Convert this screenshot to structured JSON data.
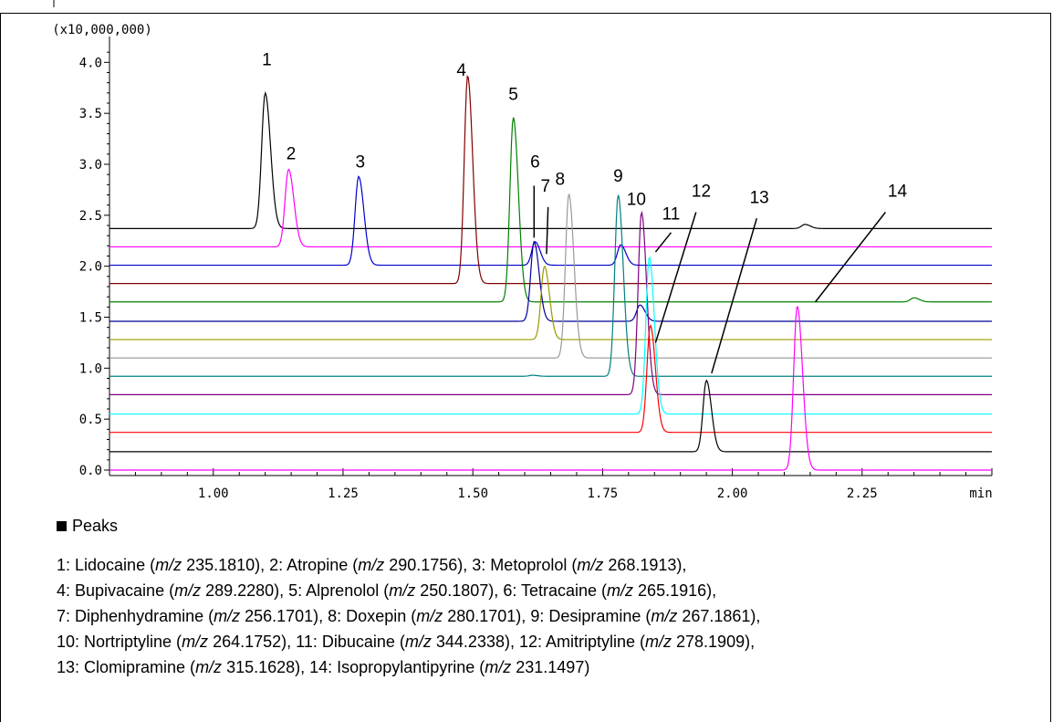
{
  "chart_data": {
    "type": "line",
    "title": "",
    "xlabel": "min",
    "ylabel": "",
    "y_multiplier_label": "(x10,000,000)",
    "xlim": [
      0.8,
      2.5
    ],
    "ylim": [
      0.0,
      4.2
    ],
    "x_ticks": [
      1.0,
      1.25,
      1.5,
      1.75,
      2.0,
      2.25
    ],
    "x_tick_labels": [
      "1.00",
      "1.25",
      "1.50",
      "1.75",
      "2.00",
      "2.25"
    ],
    "y_ticks": [
      0.0,
      0.5,
      1.0,
      1.5,
      2.0,
      2.5,
      3.0,
      3.5,
      4.0
    ],
    "y_tick_labels": [
      "0.0",
      "0.5",
      "1.0",
      "1.5",
      "2.0",
      "2.5",
      "3.0",
      "3.5",
      "4.0"
    ],
    "grid": false,
    "series": [
      {
        "color": "#000000",
        "baseline": 2.37,
        "peaks": [
          {
            "x": 1.1,
            "apex": 3.7
          },
          {
            "x": 2.14,
            "apex": 2.41
          }
        ]
      },
      {
        "color": "#ff00ff",
        "baseline": 2.19,
        "peaks": [
          {
            "x": 1.145,
            "apex": 2.95
          }
        ]
      },
      {
        "color": "#0000cc",
        "baseline": 2.01,
        "peaks": [
          {
            "x": 1.28,
            "apex": 2.88
          },
          {
            "x": 1.62,
            "apex": 2.24
          },
          {
            "x": 1.785,
            "apex": 2.21
          }
        ]
      },
      {
        "color": "#800000",
        "baseline": 1.83,
        "peaks": [
          {
            "x": 1.49,
            "apex": 3.87
          }
        ]
      },
      {
        "color": "#008000",
        "baseline": 1.65,
        "peaks": [
          {
            "x": 1.578,
            "apex": 3.46
          },
          {
            "x": 2.35,
            "apex": 1.69
          }
        ]
      },
      {
        "color": "#000099",
        "baseline": 1.46,
        "peaks": [
          {
            "x": 1.618,
            "apex": 2.24
          },
          {
            "x": 1.822,
            "apex": 1.62
          }
        ]
      },
      {
        "color": "#999900",
        "baseline": 1.28,
        "peaks": [
          {
            "x": 1.638,
            "apex": 2.0
          }
        ]
      },
      {
        "color": "#999999",
        "baseline": 1.1,
        "peaks": [
          {
            "x": 1.685,
            "apex": 2.71
          }
        ]
      },
      {
        "color": "#008080",
        "baseline": 0.92,
        "peaks": [
          {
            "x": 1.78,
            "apex": 2.7
          },
          {
            "x": 1.615,
            "apex": 0.93
          }
        ]
      },
      {
        "color": "#800080",
        "baseline": 0.74,
        "peaks": [
          {
            "x": 1.825,
            "apex": 2.53
          }
        ]
      },
      {
        "color": "#00ffff",
        "baseline": 0.55,
        "peaks": [
          {
            "x": 1.84,
            "apex": 2.09
          }
        ]
      },
      {
        "color": "#ff0000",
        "baseline": 0.37,
        "peaks": [
          {
            "x": 1.842,
            "apex": 1.42
          }
        ]
      },
      {
        "color": "#000000",
        "baseline": 0.18,
        "peaks": [
          {
            "x": 1.95,
            "apex": 0.88
          }
        ]
      },
      {
        "color": "#ff00ff",
        "baseline": 0.0,
        "peaks": [
          {
            "x": 2.125,
            "apex": 1.61
          }
        ]
      }
    ],
    "peak_labels": [
      {
        "text": "1",
        "x": 1.103,
        "y": 3.97
      },
      {
        "text": "2",
        "x": 1.15,
        "y": 3.05
      },
      {
        "text": "3",
        "x": 1.283,
        "y": 2.97
      },
      {
        "text": "4",
        "x": 1.478,
        "y": 3.87
      },
      {
        "text": "5",
        "x": 1.578,
        "y": 3.63
      },
      {
        "text": "6",
        "x": 1.62,
        "y": 2.97
      },
      {
        "text": "7",
        "x": 1.64,
        "y": 2.73
      },
      {
        "text": "8",
        "x": 1.668,
        "y": 2.8
      },
      {
        "text": "9",
        "x": 1.78,
        "y": 2.83
      },
      {
        "text": "10",
        "x": 1.815,
        "y": 2.6
      },
      {
        "text": "11",
        "x": 1.882,
        "y": 2.46
      },
      {
        "text": "12",
        "x": 1.94,
        "y": 2.68
      },
      {
        "text": "13",
        "x": 2.052,
        "y": 2.62
      },
      {
        "text": "14",
        "x": 2.318,
        "y": 2.68
      }
    ],
    "pointer_lines": [
      {
        "x1": 1.618,
        "y1": 2.79,
        "x2": 1.618,
        "y2": 2.28
      },
      {
        "x1": 1.645,
        "y1": 2.58,
        "x2": 1.642,
        "y2": 2.12
      },
      {
        "x1": 1.882,
        "y1": 2.33,
        "x2": 1.852,
        "y2": 2.14
      },
      {
        "x1": 1.93,
        "y1": 2.53,
        "x2": 1.852,
        "y2": 1.25
      },
      {
        "x1": 2.047,
        "y1": 2.47,
        "x2": 1.96,
        "y2": 0.95
      },
      {
        "x1": 2.295,
        "y1": 2.53,
        "x2": 2.16,
        "y2": 1.65
      }
    ]
  },
  "legend": {
    "heading": "Peaks",
    "lines": [
      [
        {
          "name": "1: Lidocaine",
          "mz": "235.1810"
        },
        {
          "name": "2: Atropine",
          "mz": "290.1756"
        },
        {
          "name": "3: Metoprolol",
          "mz": "268.1913"
        }
      ],
      [
        {
          "name": "4: Bupivacaine",
          "mz": "289.2280"
        },
        {
          "name": "5: Alprenolol",
          "mz": "250.1807"
        },
        {
          "name": "6: Tetracaine",
          "mz": "265.1916"
        }
      ],
      [
        {
          "name": "7: Diphenhydramine",
          "mz": "256.1701"
        },
        {
          "name": "8: Doxepin",
          "mz": "280.1701"
        },
        {
          "name": "9: Desipramine",
          "mz": "267.1861"
        }
      ],
      [
        {
          "name": "10: Nortriptyline",
          "mz": "264.1752"
        },
        {
          "name": "11: Dibucaine",
          "mz": "344.2338"
        },
        {
          "name": "12: Amitriptyline",
          "mz": "278.1909"
        }
      ],
      [
        {
          "name": "13: Clomipramine",
          "mz": "315.1628"
        },
        {
          "name": "14: Isopropylantipyrine",
          "mz": "231.1497"
        }
      ]
    ],
    "mz_prefix": "m/z"
  }
}
